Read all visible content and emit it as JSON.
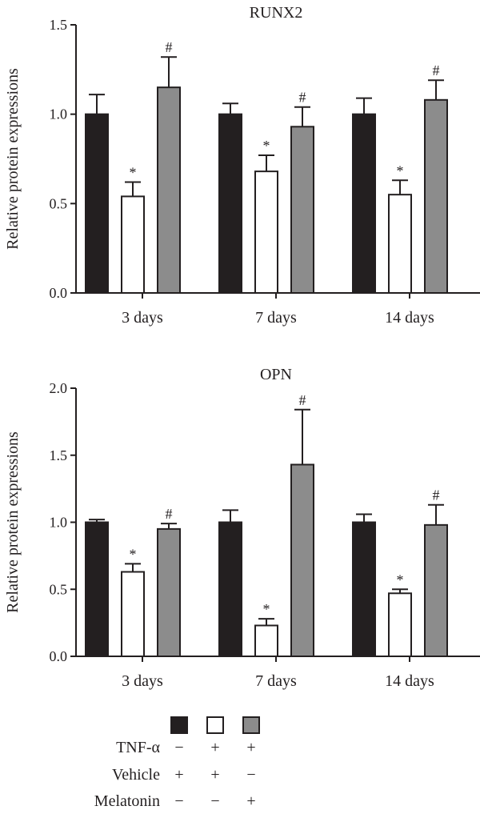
{
  "chart_data": [
    {
      "type": "bar",
      "title": "RUNX2",
      "ylabel": "Relative protein expressions",
      "ylim": [
        0,
        1.5
      ],
      "yticks": [
        "0.0",
        "0.5",
        "1.0",
        "1.5"
      ],
      "categories": [
        "3 days",
        "7 days",
        "14 days"
      ],
      "series": [
        {
          "values": [
            1.0,
            1.0,
            1.0
          ],
          "errors": [
            0.11,
            0.06,
            0.09
          ],
          "marks": [
            "",
            "",
            ""
          ]
        },
        {
          "values": [
            0.54,
            0.68,
            0.55
          ],
          "errors": [
            0.08,
            0.09,
            0.08
          ],
          "marks": [
            "*",
            "*",
            "*"
          ]
        },
        {
          "values": [
            1.15,
            0.93,
            1.08
          ],
          "errors": [
            0.17,
            0.11,
            0.11
          ],
          "marks": [
            "#",
            "#",
            "#"
          ]
        }
      ]
    },
    {
      "type": "bar",
      "title": "OPN",
      "ylabel": "Relative protein expressions",
      "ylim": [
        0,
        2.0
      ],
      "yticks": [
        "0.0",
        "0.5",
        "1.0",
        "1.5",
        "2.0"
      ],
      "categories": [
        "3 days",
        "7 days",
        "14 days"
      ],
      "series": [
        {
          "values": [
            1.0,
            1.0,
            1.0
          ],
          "errors": [
            0.02,
            0.09,
            0.06
          ],
          "marks": [
            "",
            "",
            ""
          ]
        },
        {
          "values": [
            0.63,
            0.23,
            0.47
          ],
          "errors": [
            0.06,
            0.05,
            0.03
          ],
          "marks": [
            "*",
            "*",
            "*"
          ]
        },
        {
          "values": [
            0.95,
            1.43,
            0.98
          ],
          "errors": [
            0.04,
            0.41,
            0.15
          ],
          "marks": [
            "#",
            "#",
            "#"
          ]
        }
      ]
    }
  ],
  "series_colors": [
    "#231f20",
    "#ffffff",
    "#8c8c8c"
  ],
  "legend": {
    "rows": [
      {
        "label": "TNF-α",
        "signs": [
          "−",
          "+",
          "+"
        ]
      },
      {
        "label": "Vehicle",
        "signs": [
          "+",
          "+",
          "−"
        ]
      },
      {
        "label": "Melatonin",
        "signs": [
          "−",
          "−",
          "+"
        ]
      }
    ]
  }
}
